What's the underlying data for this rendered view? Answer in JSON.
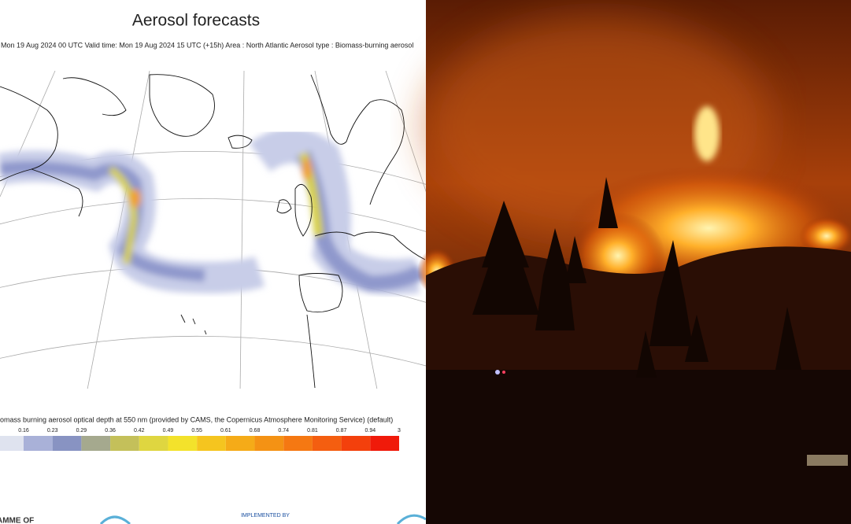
{
  "header": {
    "title": "Aerosol forecasts",
    "subtitle": ": Mon 19 Aug 2024 00 UTC Valid time: Mon 19 Aug 2024 15 UTC (+15h) Area : North Atlantic Aerosol type : Biomass-burning aerosol"
  },
  "legend": {
    "title": "iomass burning aerosol optical depth at 550 nm (provided by CAMS, the Copernicus Atmosphere Monitoring Service) (default)",
    "labels": [
      "0.16",
      "0.23",
      "0.29",
      "0.36",
      "0.42",
      "0.49",
      "0.55",
      "0.61",
      "0.68",
      "0.74",
      "0.81",
      "0.87",
      "0.94",
      "3"
    ],
    "colors": [
      "#dfe3ef",
      "#a9b1d8",
      "#8893c2",
      "#a5a98e",
      "#c4c05a",
      "#dfd640",
      "#f3e22b",
      "#f5c51f",
      "#f5ab18",
      "#f49214",
      "#f57812",
      "#f45e10",
      "#f3400c",
      "#f01a0a"
    ]
  },
  "footer": {
    "left": "AMME OF",
    "center": "IMPLEMENTED BY"
  }
}
